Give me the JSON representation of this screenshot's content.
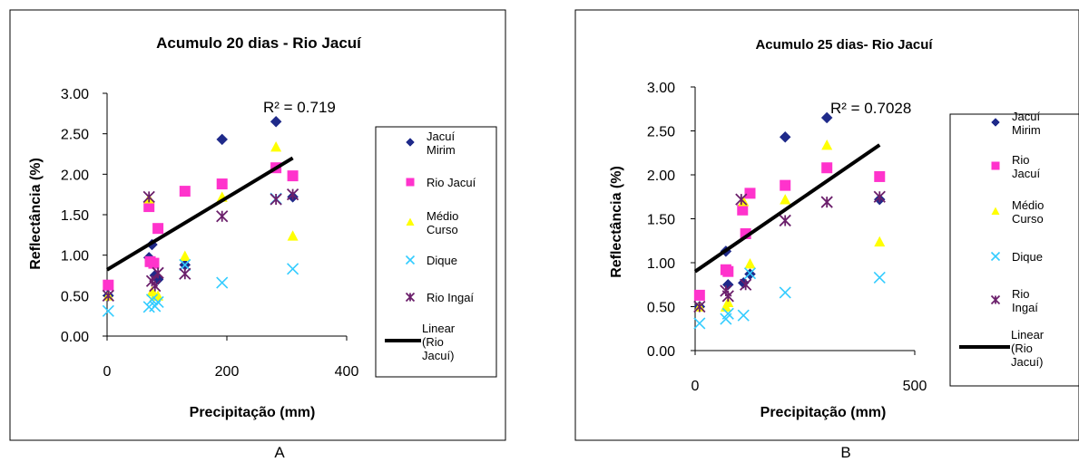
{
  "panel_labels": [
    "A",
    "B"
  ],
  "legend_labels": [
    "Jacuí Mirim",
    "Rio Jacuí",
    "Médio Curso",
    "Dique",
    "Rio Ingaí",
    "Linear (Rio Jacuí)"
  ],
  "series_styles": [
    {
      "name": "Jacuí Mirim",
      "marker": "diamond",
      "color": "#1F2A8A"
    },
    {
      "name": "Rio Jacuí",
      "marker": "square",
      "color": "#FF33CC"
    },
    {
      "name": "Médio Curso",
      "marker": "triangle",
      "color": "#FFFF00"
    },
    {
      "name": "Dique",
      "marker": "x",
      "color": "#33CCFF"
    },
    {
      "name": "Rio Ingaí",
      "marker": "star",
      "color": "#6B1F6B"
    }
  ],
  "trend_color": "#000000",
  "chart_data": [
    {
      "type": "scatter",
      "title": "Acumulo 20 dias -  Rio Jacuí",
      "xlabel": "Precipitação (mm)",
      "ylabel": "Reflectância (%)",
      "xlim": [
        0,
        400
      ],
      "ylim": [
        0,
        3
      ],
      "xticks": [
        "0",
        "200",
        "400"
      ],
      "yticks": [
        "0.00",
        "0.50",
        "1.00",
        "1.50",
        "2.00",
        "2.50",
        "3.00"
      ],
      "grid": false,
      "legend_position": "right",
      "r2_label": "R² = 0.719",
      "series": [
        {
          "name": "Jacuí Mirim",
          "x": [
            2,
            70,
            75,
            80,
            85,
            130,
            192,
            282,
            310
          ],
          "y": [
            0.5,
            0.97,
            1.13,
            0.75,
            0.7,
            0.88,
            2.43,
            2.65,
            1.72
          ]
        },
        {
          "name": "Rio Jacuí",
          "x": [
            2,
            70,
            72,
            78,
            85,
            130,
            192,
            282,
            310
          ],
          "y": [
            0.63,
            1.6,
            0.92,
            0.9,
            1.33,
            1.79,
            1.88,
            2.08,
            1.98
          ]
        },
        {
          "name": "Médio Curso",
          "x": [
            2,
            70,
            75,
            80,
            85,
            130,
            192,
            282,
            310
          ],
          "y": [
            0.5,
            1.7,
            0.55,
            0.5,
            0.5,
            0.99,
            1.72,
            2.34,
            1.24
          ]
        },
        {
          "name": "Dique",
          "x": [
            2,
            70,
            75,
            80,
            85,
            130,
            192,
            282,
            310
          ],
          "y": [
            0.31,
            0.36,
            0.45,
            0.37,
            0.42,
            0.88,
            0.66,
            1.7,
            0.83
          ]
        },
        {
          "name": "Rio Ingaí",
          "x": [
            2,
            70,
            75,
            80,
            85,
            130,
            192,
            282,
            310
          ],
          "y": [
            0.5,
            1.72,
            0.68,
            0.62,
            0.78,
            0.77,
            1.48,
            1.69,
            1.75
          ]
        }
      ],
      "trendline": {
        "series": "Rio Jacuí",
        "x": [
          0,
          310
        ],
        "y": [
          0.82,
          2.2
        ]
      }
    },
    {
      "type": "scatter",
      "title": "Acumulo 25 dias- Rio Jacuí",
      "xlabel": "Precipitação (mm)",
      "ylabel": "Reflectância (%)",
      "xlim": [
        0,
        500
      ],
      "ylim": [
        0,
        3
      ],
      "xticks": [
        "0",
        "500"
      ],
      "yticks": [
        "0.00",
        "0.50",
        "1.00",
        "1.50",
        "2.00",
        "2.50",
        "3.00"
      ],
      "grid": false,
      "legend_position": "right",
      "r2_label": "R² = 0.7028",
      "series": [
        {
          "name": "Jacuí Mirim",
          "x": [
            10,
            70,
            75,
            110,
            125,
            205,
            300,
            420
          ],
          "y": [
            0.5,
            1.13,
            0.75,
            0.77,
            0.87,
            2.43,
            2.65,
            1.72
          ]
        },
        {
          "name": "Rio Jacuí",
          "x": [
            10,
            70,
            75,
            108,
            115,
            125,
            205,
            300,
            420
          ],
          "y": [
            0.63,
            0.92,
            0.9,
            1.6,
            1.33,
            1.79,
            1.88,
            2.08,
            1.98
          ]
        },
        {
          "name": "Médio Curso",
          "x": [
            10,
            70,
            75,
            110,
            125,
            205,
            300,
            420
          ],
          "y": [
            0.5,
            0.5,
            0.55,
            1.7,
            0.99,
            1.72,
            2.34,
            1.24
          ]
        },
        {
          "name": "Dique",
          "x": [
            10,
            70,
            75,
            110,
            125,
            205,
            420
          ],
          "y": [
            0.31,
            0.36,
            0.42,
            0.4,
            0.88,
            0.66,
            0.83
          ]
        },
        {
          "name": "Rio Ingaí",
          "x": [
            10,
            70,
            75,
            105,
            115,
            205,
            300,
            420
          ],
          "y": [
            0.5,
            0.68,
            0.62,
            1.72,
            0.75,
            1.48,
            1.69,
            1.75
          ]
        }
      ],
      "trendline": {
        "series": "Rio Jacuí",
        "x": [
          0,
          420
        ],
        "y": [
          0.9,
          2.34
        ]
      }
    }
  ]
}
